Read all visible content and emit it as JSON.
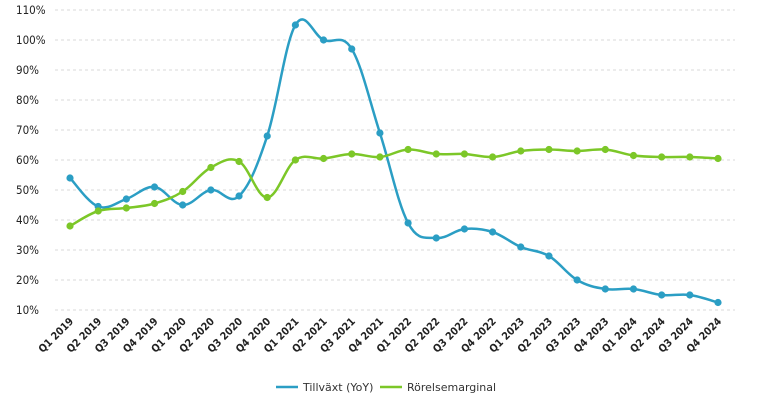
{
  "chart_data": {
    "type": "line",
    "categories": [
      "Q1 2019",
      "Q2 2019",
      "Q3 2019",
      "Q4 2019",
      "Q1 2020",
      "Q2 2020",
      "Q3 2020",
      "Q4 2020",
      "Q1 2021",
      "Q2 2021",
      "Q3 2021",
      "Q4 2021",
      "Q1 2022",
      "Q2 2022",
      "Q3 2022",
      "Q4 2022",
      "Q1 2023",
      "Q2 2023",
      "Q3 2023",
      "Q4 2023",
      "Q1 2024",
      "Q2 2024",
      "Q3 2024",
      "Q4 2024"
    ],
    "series": [
      {
        "name": "Tillväxt (YoY)",
        "color": "#2b9ec4",
        "values": [
          54,
          44.5,
          47,
          51,
          45,
          50,
          48,
          68,
          105,
          100,
          97,
          69,
          39,
          34,
          37,
          36,
          31,
          28,
          20,
          17,
          17,
          15,
          15,
          12.5
        ]
      },
      {
        "name": "Rörelsemarginal",
        "color": "#7cc728",
        "values": [
          38,
          43,
          44,
          45.5,
          49.5,
          57.5,
          59.5,
          47.5,
          60,
          60.5,
          62,
          61,
          63.5,
          62,
          62,
          61,
          63,
          63.5,
          63,
          63.5,
          61.5,
          61,
          61,
          60.5
        ]
      }
    ],
    "yticks": [
      "10%",
      "20%",
      "30%",
      "40%",
      "50%",
      "60%",
      "70%",
      "80%",
      "90%",
      "100%",
      "110%"
    ],
    "ylim": [
      10,
      110
    ],
    "grid": true,
    "legend_position": "bottom-center",
    "title": "",
    "xlabel": "",
    "ylabel": ""
  }
}
